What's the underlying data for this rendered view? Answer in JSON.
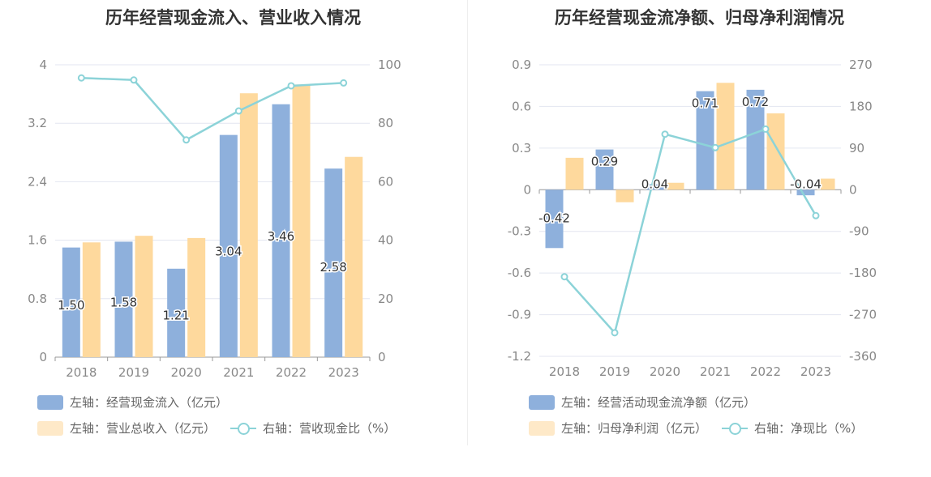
{
  "charts": [
    {
      "title": "历年经营现金流入、营业收入情况",
      "legend": [
        {
          "label": "左轴：经营现金流入（亿元）",
          "color": "#8eb0dc",
          "kind": "bar"
        },
        {
          "label": "左轴：营业总收入（亿元）",
          "color": "#fed99d",
          "kind": "bar"
        },
        {
          "label": "右轴：营收现金比（%）",
          "color": "#8cd3d8",
          "kind": "line"
        }
      ]
    },
    {
      "title": "历年经营现金流净额、归母净利润情况",
      "legend": [
        {
          "label": "左轴：经营活动现金流净额（亿元）",
          "color": "#8eb0dc",
          "kind": "bar"
        },
        {
          "label": "左轴：归母净利润（亿元）",
          "color": "#fed99d",
          "kind": "bar"
        },
        {
          "label": "右轴：净现比（%）",
          "color": "#8cd3d8",
          "kind": "line"
        }
      ]
    }
  ],
  "chart_data": [
    {
      "type": "bar",
      "title": "历年经营现金流入、营业收入情况",
      "categories": [
        "2018",
        "2019",
        "2020",
        "2021",
        "2022",
        "2023"
      ],
      "left_axis": {
        "min": 0,
        "max": 4,
        "ticks": [
          "0",
          "0.8",
          "1.6",
          "2.4",
          "3.2",
          "4"
        ]
      },
      "right_axis": {
        "min": 0,
        "max": 100,
        "ticks": [
          "0",
          "20",
          "40",
          "60",
          "80",
          "100"
        ]
      },
      "series": [
        {
          "name": "左轴：经营现金流入（亿元）",
          "axis": "left",
          "type": "bar",
          "values": [
            1.5,
            1.58,
            1.21,
            3.04,
            3.46,
            2.58
          ],
          "labels": [
            "1.50",
            "1.58",
            "1.21",
            "3.04",
            "3.46",
            "2.58"
          ],
          "color": "#8eb0dc"
        },
        {
          "name": "左轴：营业总收入（亿元）",
          "axis": "left",
          "type": "bar",
          "values": [
            1.57,
            1.66,
            1.63,
            3.61,
            3.73,
            2.74
          ],
          "color": "#fed99d"
        },
        {
          "name": "右轴：营收现金比（%）",
          "axis": "right",
          "type": "line",
          "values": [
            95.5,
            94.8,
            74.3,
            84.2,
            92.8,
            93.8
          ],
          "color": "#8cd3d8"
        }
      ]
    },
    {
      "type": "bar",
      "title": "历年经营现金流净额、归母净利润情况",
      "categories": [
        "2018",
        "2019",
        "2020",
        "2021",
        "2022",
        "2023"
      ],
      "left_axis": {
        "min": -1.2,
        "max": 0.9,
        "ticks": [
          "-1.2",
          "-0.9",
          "-0.6",
          "-0.3",
          "0",
          "0.3",
          "0.6",
          "0.9"
        ]
      },
      "right_axis": {
        "min": -360,
        "max": 270,
        "ticks": [
          "-360",
          "-270",
          "-180",
          "-90",
          "0",
          "90",
          "180",
          "270"
        ]
      },
      "series": [
        {
          "name": "左轴：经营活动现金流净额（亿元）",
          "axis": "left",
          "type": "bar",
          "values": [
            -0.42,
            0.29,
            0.04,
            0.71,
            0.72,
            -0.04
          ],
          "labels": [
            "-0.42",
            "0.29",
            "0.04",
            "0.71",
            "0.72",
            "-0.04"
          ],
          "color": "#8eb0dc"
        },
        {
          "name": "左轴：归母净利润（亿元）",
          "axis": "left",
          "type": "bar",
          "values": [
            0.23,
            -0.09,
            0.05,
            0.77,
            0.55,
            0.08
          ],
          "color": "#fed99d"
        },
        {
          "name": "右轴：净现比（%）",
          "axis": "right",
          "type": "line",
          "values": [
            -188,
            -309,
            120,
            91,
            131,
            -56
          ],
          "color": "#8cd3d8"
        }
      ]
    }
  ]
}
